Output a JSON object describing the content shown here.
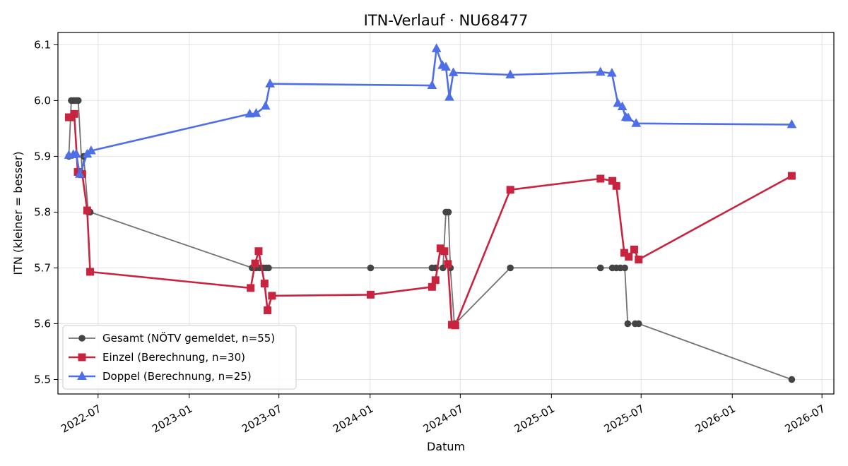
{
  "chart_data": {
    "type": "line",
    "title": "ITN-Verlauf · NU68477",
    "xlabel": "Datum",
    "ylabel": "ITN  (kleiner = besser)",
    "x_axis_type": "date",
    "xlim": [
      "2022-04-11",
      "2026-07-25"
    ],
    "ylim": [
      5.474,
      6.122
    ],
    "x_ticks": [
      "2022-07",
      "2023-01",
      "2023-07",
      "2024-01",
      "2024-07",
      "2025-01",
      "2025-07",
      "2026-01",
      "2026-07"
    ],
    "y_ticks": [
      5.5,
      5.6,
      5.7,
      5.8,
      5.9,
      6.0,
      6.1
    ],
    "grid": true,
    "legend_position": "lower-left",
    "series": [
      {
        "name": "Gesamt (NÖTV gemeldet, n=55)",
        "color": "#444444",
        "marker": "circle",
        "points": [
          [
            "2022-05-03",
            5.9
          ],
          [
            "2022-05-08",
            6.0
          ],
          [
            "2022-05-13",
            6.0
          ],
          [
            "2022-05-18",
            6.0
          ],
          [
            "2022-05-22",
            6.0
          ],
          [
            "2022-05-30",
            5.87
          ],
          [
            "2022-06-02",
            5.9
          ],
          [
            "2022-06-11",
            5.8
          ],
          [
            "2022-06-15",
            5.8
          ],
          [
            "2023-05-08",
            5.7
          ],
          [
            "2023-05-16",
            5.7
          ],
          [
            "2023-05-23",
            5.7
          ],
          [
            "2023-05-31",
            5.7
          ],
          [
            "2023-06-05",
            5.7
          ],
          [
            "2023-06-10",
            5.7
          ],
          [
            "2024-01-02",
            5.7
          ],
          [
            "2024-05-05",
            5.7
          ],
          [
            "2024-05-12",
            5.7
          ],
          [
            "2024-05-27",
            5.7
          ],
          [
            "2024-06-02",
            5.8
          ],
          [
            "2024-06-07",
            5.8
          ],
          [
            "2024-06-11",
            5.7
          ],
          [
            "2024-06-19",
            5.6
          ],
          [
            "2024-06-21",
            5.6
          ],
          [
            "2024-10-10",
            5.7
          ],
          [
            "2025-04-10",
            5.7
          ],
          [
            "2025-05-04",
            5.7
          ],
          [
            "2025-05-12",
            5.7
          ],
          [
            "2025-05-20",
            5.7
          ],
          [
            "2025-05-29",
            5.7
          ],
          [
            "2025-06-04",
            5.6
          ],
          [
            "2025-06-19",
            5.6
          ],
          [
            "2025-06-26",
            5.6
          ],
          [
            "2026-05-01",
            5.5
          ]
        ]
      },
      {
        "name": "Einzel (Berechnung, n=30)",
        "color": "#c8243f",
        "marker": "square",
        "points": [
          [
            "2022-05-03",
            5.97
          ],
          [
            "2022-05-08",
            5.97
          ],
          [
            "2022-05-14",
            5.976
          ],
          [
            "2022-05-21",
            5.872
          ],
          [
            "2022-05-30",
            5.868
          ],
          [
            "2022-06-09",
            5.803
          ],
          [
            "2022-06-15",
            5.693
          ],
          [
            "2023-05-05",
            5.664
          ],
          [
            "2023-05-14",
            5.708
          ],
          [
            "2023-05-21",
            5.73
          ],
          [
            "2023-06-02",
            5.672
          ],
          [
            "2023-06-08",
            5.624
          ],
          [
            "2023-06-17",
            5.65
          ],
          [
            "2024-01-02",
            5.652
          ],
          [
            "2024-05-05",
            5.666
          ],
          [
            "2024-05-12",
            5.678
          ],
          [
            "2024-05-22",
            5.735
          ],
          [
            "2024-05-30",
            5.73
          ],
          [
            "2024-06-06",
            5.707
          ],
          [
            "2024-06-14",
            5.598
          ],
          [
            "2024-06-21",
            5.597
          ],
          [
            "2024-10-10",
            5.84
          ],
          [
            "2025-04-10",
            5.86
          ],
          [
            "2025-05-04",
            5.856
          ],
          [
            "2025-05-12",
            5.847
          ],
          [
            "2025-05-28",
            5.727
          ],
          [
            "2025-06-06",
            5.72
          ],
          [
            "2025-06-17",
            5.733
          ],
          [
            "2025-06-26",
            5.715
          ],
          [
            "2026-05-01",
            5.865
          ]
        ]
      },
      {
        "name": "Doppel (Berechnung, n=25)",
        "color": "#4f6fe8",
        "marker": "triangle",
        "points": [
          [
            "2022-05-03",
            5.902
          ],
          [
            "2022-05-12",
            5.903
          ],
          [
            "2022-05-18",
            5.904
          ],
          [
            "2022-05-25",
            5.868
          ],
          [
            "2022-06-09",
            5.904
          ],
          [
            "2022-06-17",
            5.91
          ],
          [
            "2023-05-03",
            5.976
          ],
          [
            "2023-05-16",
            5.977
          ],
          [
            "2023-06-04",
            5.99
          ],
          [
            "2023-06-13",
            6.03
          ],
          [
            "2024-05-05",
            6.027
          ],
          [
            "2024-05-14",
            6.093
          ],
          [
            "2024-05-26",
            6.063
          ],
          [
            "2024-06-02",
            6.06
          ],
          [
            "2024-06-09",
            6.006
          ],
          [
            "2024-06-17",
            6.05
          ],
          [
            "2024-10-10",
            6.046
          ],
          [
            "2025-04-10",
            6.051
          ],
          [
            "2025-05-03",
            6.049
          ],
          [
            "2025-05-15",
            5.995
          ],
          [
            "2025-05-24",
            5.989
          ],
          [
            "2025-05-31",
            5.97
          ],
          [
            "2025-06-05",
            5.969
          ],
          [
            "2025-06-21",
            5.959
          ],
          [
            "2026-05-01",
            5.957
          ]
        ]
      }
    ]
  }
}
